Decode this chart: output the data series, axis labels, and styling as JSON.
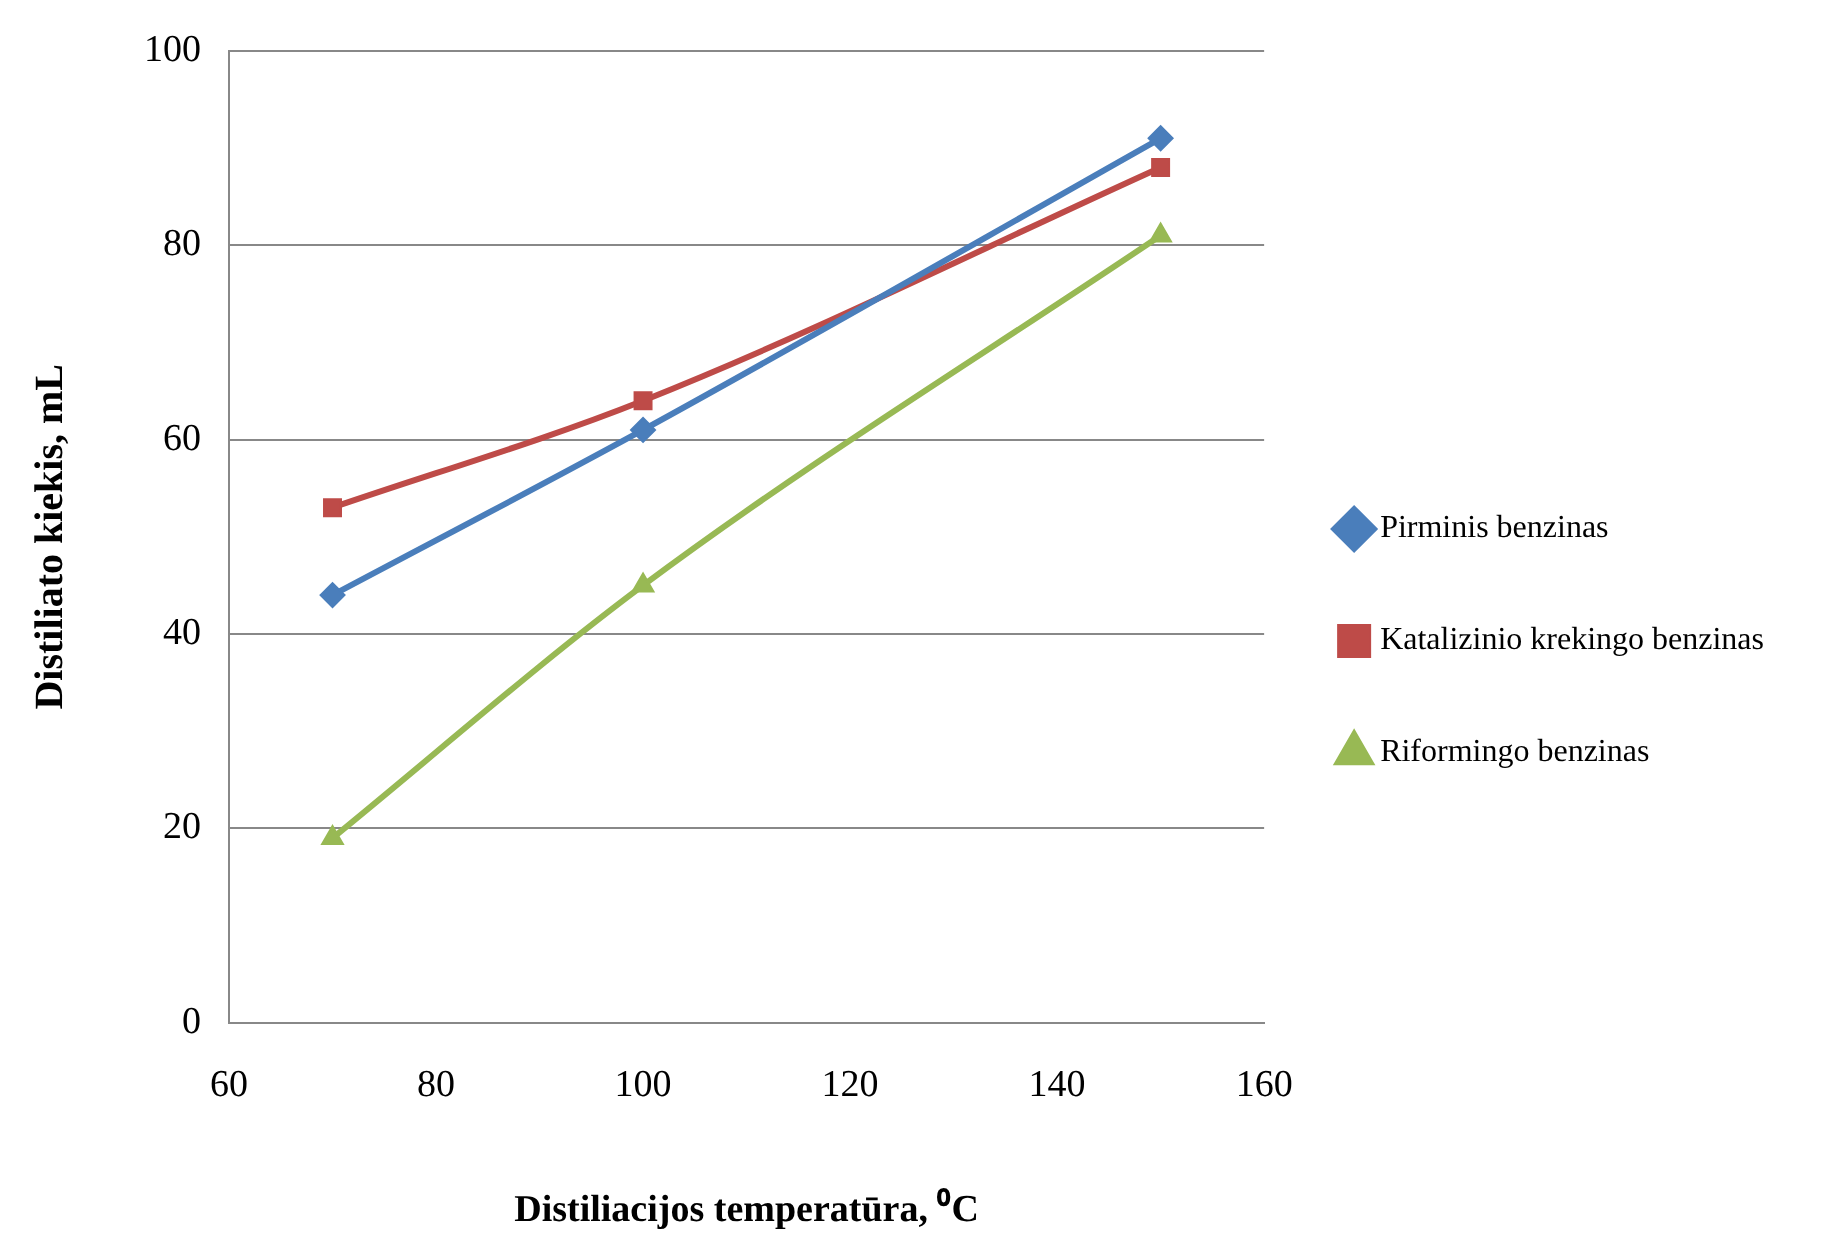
{
  "chart_data": {
    "type": "line",
    "xlabel": "Distiliacijos temperatūra, ⁰C",
    "ylabel": "Distiliato kiekis, mL",
    "x": [
      70,
      100,
      150
    ],
    "series": [
      {
        "name": "Pirminis benzinas",
        "color": "#4a7ebb",
        "marker": "diamond",
        "values": [
          44,
          61,
          91
        ]
      },
      {
        "name": "Katalizinio krekingo benzinas",
        "color": "#be4b48",
        "marker": "square",
        "values": [
          53,
          64,
          88
        ]
      },
      {
        "name": "Riformingo benzinas",
        "color": "#98b954",
        "marker": "triangle",
        "values": [
          19,
          45,
          81
        ]
      }
    ],
    "xlim": [
      60,
      160
    ],
    "xticks": [
      60,
      80,
      100,
      120,
      140,
      160
    ],
    "ylim": [
      0,
      100
    ],
    "yticks": [
      0,
      20,
      40,
      60,
      80,
      100
    ],
    "grid": "y",
    "legend": "right",
    "line_style": "solid"
  }
}
